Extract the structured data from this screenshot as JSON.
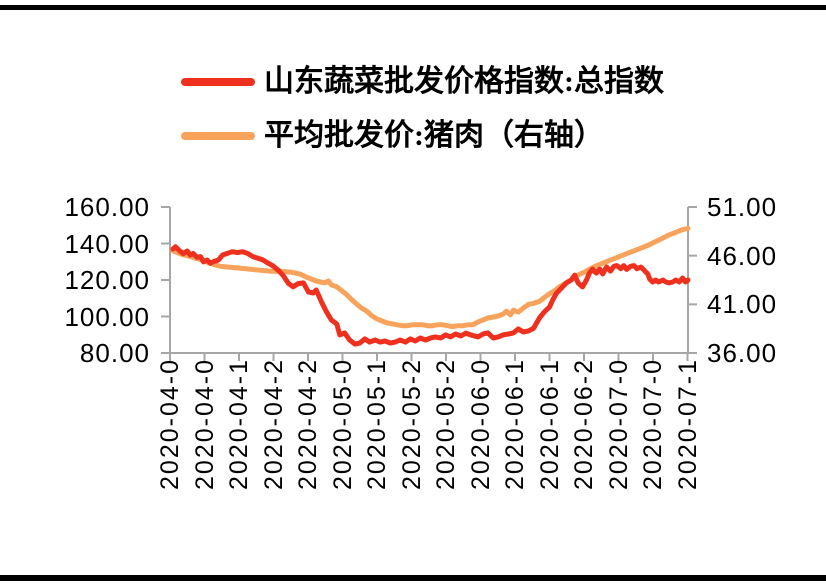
{
  "frame": {
    "background": "#ffffff",
    "top_rule_color": "#000000",
    "bottom_rule_color": "#000000"
  },
  "legend": {
    "items": [
      {
        "label": "山东蔬菜批发价格指数:总指数",
        "color": "#f0301e"
      },
      {
        "label": "平均批发价:猪肉（右轴）",
        "color": "#f7a35c"
      }
    ]
  },
  "chart_data": {
    "type": "line",
    "title": "",
    "grid": "off",
    "legend_position": "top-left",
    "axis_color": "#a6a6a6",
    "text_color": "#000000",
    "x_unit": "day index (0 = first tick 2020-04-0, weekly ticks, daily data)",
    "x_axis": {
      "tick_labels": [
        "2020-04-0",
        "2020-04-0",
        "2020-04-1",
        "2020-04-2",
        "2020-04-2",
        "2020-05-0",
        "2020-05-1",
        "2020-05-2",
        "2020-05-2",
        "2020-06-0",
        "2020-06-1",
        "2020-06-1",
        "2020-06-2",
        "2020-07-0",
        "2020-07-0",
        "2020-07-1"
      ]
    },
    "y_axis_left": {
      "min": 80,
      "max": 160,
      "tick_values": [
        160,
        140,
        120,
        100,
        80
      ],
      "tick_labels": [
        "160.00",
        "140.00",
        "120.00",
        "100.00",
        "80.00"
      ]
    },
    "y_axis_right": {
      "min": 36,
      "max": 51,
      "tick_values": [
        51,
        46,
        41,
        36
      ],
      "tick_labels": [
        "51.00",
        "46.00",
        "41.00",
        "36.00"
      ]
    },
    "series": [
      {
        "name": "平均批发价:猪肉（右轴）",
        "axis": "right",
        "color": "#f7a35c",
        "points": [
          [
            0,
            46.5
          ],
          [
            1.4,
            46.2
          ],
          [
            3.5,
            45.9
          ],
          [
            5.6,
            45.6
          ],
          [
            7.6,
            45.2
          ],
          [
            9.7,
            44.9
          ],
          [
            11.7,
            44.8
          ],
          [
            13.8,
            44.7
          ],
          [
            15.9,
            44.6
          ],
          [
            17.9,
            44.5
          ],
          [
            20,
            44.4
          ],
          [
            22,
            44.4
          ],
          [
            24.1,
            44.3
          ],
          [
            26,
            44.1
          ],
          [
            27.2,
            43.8
          ],
          [
            29.2,
            43.4
          ],
          [
            30.9,
            43.2
          ],
          [
            31.7,
            43.4
          ],
          [
            32.3,
            43
          ],
          [
            33.4,
            42.8
          ],
          [
            34.4,
            42.4
          ],
          [
            35.4,
            42
          ],
          [
            36.4,
            41.5
          ],
          [
            37.5,
            41
          ],
          [
            38.5,
            40.6
          ],
          [
            39.5,
            40.3
          ],
          [
            40.6,
            39.8
          ],
          [
            41.6,
            39.5
          ],
          [
            42.6,
            39.3
          ],
          [
            43.6,
            39.1
          ],
          [
            44.7,
            39
          ],
          [
            45.7,
            38.9
          ],
          [
            46.7,
            38.8
          ],
          [
            47.8,
            38.8
          ],
          [
            48.8,
            38.9
          ],
          [
            49.8,
            38.9
          ],
          [
            50.9,
            38.9
          ],
          [
            51.9,
            38.8
          ],
          [
            52.9,
            38.8
          ],
          [
            53.9,
            38.9
          ],
          [
            55,
            38.9
          ],
          [
            56,
            38.8
          ],
          [
            57,
            38.7
          ],
          [
            58.1,
            38.8
          ],
          [
            59.1,
            38.8
          ],
          [
            60.1,
            38.9
          ],
          [
            61.1,
            38.9
          ],
          [
            62.2,
            39.2
          ],
          [
            63.2,
            39.4
          ],
          [
            64.2,
            39.6
          ],
          [
            65.3,
            39.7
          ],
          [
            66.3,
            39.8
          ],
          [
            67.3,
            40
          ],
          [
            68,
            40.3
          ],
          [
            68.8,
            39.9
          ],
          [
            69.4,
            40.4
          ],
          [
            70.4,
            40.2
          ],
          [
            71.4,
            40.6
          ],
          [
            72.5,
            41
          ],
          [
            73.5,
            41.1
          ],
          [
            74.7,
            41.3
          ],
          [
            75.7,
            41.7
          ],
          [
            76.8,
            42.1
          ],
          [
            77.8,
            42.4
          ],
          [
            78.8,
            42.8
          ],
          [
            79.8,
            43.1
          ],
          [
            80.8,
            43.4
          ],
          [
            81.9,
            43.8
          ],
          [
            82.9,
            44.1
          ],
          [
            83.9,
            44.3
          ],
          [
            84.9,
            44.6
          ],
          [
            86,
            44.9
          ],
          [
            87,
            45.1
          ],
          [
            88,
            45.3
          ],
          [
            89,
            45.5
          ],
          [
            90,
            45.7
          ],
          [
            91,
            45.9
          ],
          [
            92,
            46.1
          ],
          [
            93,
            46.3
          ],
          [
            94,
            46.5
          ],
          [
            95,
            46.7
          ],
          [
            96,
            46.9
          ],
          [
            97,
            47.1
          ],
          [
            98,
            47.35
          ],
          [
            99,
            47.6
          ],
          [
            100,
            47.85
          ],
          [
            101,
            48.1
          ],
          [
            102,
            48.3
          ],
          [
            103,
            48.5
          ],
          [
            104,
            48.7
          ],
          [
            105,
            48.8
          ]
        ]
      },
      {
        "name": "山东蔬菜批发价格指数:总指数",
        "axis": "left",
        "color": "#f0301e",
        "points": [
          [
            0,
            137
          ],
          [
            0.5,
            138.2
          ],
          [
            1.4,
            135.9
          ],
          [
            2.1,
            134.4
          ],
          [
            2.9,
            135.9
          ],
          [
            3.5,
            133.7
          ],
          [
            4.1,
            134.6
          ],
          [
            4.9,
            132.4
          ],
          [
            5.6,
            132.8
          ],
          [
            6.2,
            130
          ],
          [
            7,
            130.9
          ],
          [
            7.6,
            129.2
          ],
          [
            8.2,
            130
          ],
          [
            9.3,
            131
          ],
          [
            10.1,
            133.7
          ],
          [
            11.1,
            134.6
          ],
          [
            12.1,
            135.5
          ],
          [
            13.2,
            135
          ],
          [
            14.2,
            135.5
          ],
          [
            15.2,
            134.6
          ],
          [
            16.3,
            132.8
          ],
          [
            17.3,
            131.9
          ],
          [
            18.3,
            131
          ],
          [
            19.4,
            129.2
          ],
          [
            20.4,
            127.7
          ],
          [
            21.4,
            125.5
          ],
          [
            22.4,
            122.7
          ],
          [
            23.5,
            118.2
          ],
          [
            24.5,
            116.3
          ],
          [
            25.5,
            118
          ],
          [
            26.6,
            118.4
          ],
          [
            27.6,
            113.4
          ],
          [
            28.6,
            112.9
          ],
          [
            29.2,
            114.5
          ],
          [
            30.3,
            107.9
          ],
          [
            31.3,
            102.5
          ],
          [
            32.3,
            98.1
          ],
          [
            33.4,
            95.9
          ],
          [
            34,
            89.9
          ],
          [
            35,
            91
          ],
          [
            36,
            87.1
          ],
          [
            37.1,
            84.9
          ],
          [
            38.1,
            85.5
          ],
          [
            39.1,
            87.7
          ],
          [
            40.1,
            86
          ],
          [
            41.2,
            87.1
          ],
          [
            42.2,
            86
          ],
          [
            43.2,
            86.6
          ],
          [
            44.3,
            85.5
          ],
          [
            45.3,
            86
          ],
          [
            46.3,
            87.1
          ],
          [
            47.4,
            86
          ],
          [
            48.4,
            87.7
          ],
          [
            49.4,
            86.6
          ],
          [
            50.4,
            88.2
          ],
          [
            51.5,
            87.1
          ],
          [
            52.5,
            88.2
          ],
          [
            53.5,
            88.8
          ],
          [
            54.6,
            88.2
          ],
          [
            55.6,
            89.9
          ],
          [
            56.6,
            88.8
          ],
          [
            57.6,
            90.4
          ],
          [
            58.7,
            89.3
          ],
          [
            59.7,
            90.9
          ],
          [
            60.7,
            89.9
          ],
          [
            62.2,
            88.8
          ],
          [
            63.2,
            90.4
          ],
          [
            64.2,
            91
          ],
          [
            65.3,
            88.2
          ],
          [
            66.3,
            88.8
          ],
          [
            67.3,
            89.9
          ],
          [
            68.4,
            90.4
          ],
          [
            69.4,
            91
          ],
          [
            70.4,
            93.2
          ],
          [
            71.4,
            91.5
          ],
          [
            72.5,
            92.1
          ],
          [
            73.5,
            93.5
          ],
          [
            74.7,
            99.1
          ],
          [
            75.7,
            102.5
          ],
          [
            76.8,
            105.3
          ],
          [
            77.4,
            109
          ],
          [
            78.2,
            112.9
          ],
          [
            79.2,
            115.6
          ],
          [
            80.2,
            118.4
          ],
          [
            81.2,
            120
          ],
          [
            81.9,
            122.7
          ],
          [
            82.6,
            118.4
          ],
          [
            83.5,
            116.2
          ],
          [
            84.3,
            120
          ],
          [
            84.9,
            123.8
          ],
          [
            85.5,
            126
          ],
          [
            86.3,
            123.8
          ],
          [
            87,
            126
          ],
          [
            87.6,
            123.3
          ],
          [
            88.4,
            127.1
          ],
          [
            89.2,
            124.9
          ],
          [
            89.9,
            127.5
          ],
          [
            90.5,
            127.9
          ],
          [
            91.3,
            126.2
          ],
          [
            91.9,
            127.9
          ],
          [
            92.5,
            125.8
          ],
          [
            93.3,
            127.5
          ],
          [
            94,
            127.9
          ],
          [
            94.6,
            126.2
          ],
          [
            95.4,
            127.1
          ],
          [
            96,
            125.5
          ],
          [
            96.8,
            123.3
          ],
          [
            97.2,
            120.5
          ],
          [
            97.8,
            118.9
          ],
          [
            98.4,
            120
          ],
          [
            99,
            118.9
          ],
          [
            99.9,
            120
          ],
          [
            100.5,
            118.9
          ],
          [
            101.1,
            118.4
          ],
          [
            101.9,
            118.9
          ],
          [
            102.5,
            120
          ],
          [
            103.2,
            118.9
          ],
          [
            103.9,
            121.1
          ],
          [
            104.5,
            118.9
          ],
          [
            105,
            120
          ]
        ]
      }
    ]
  }
}
